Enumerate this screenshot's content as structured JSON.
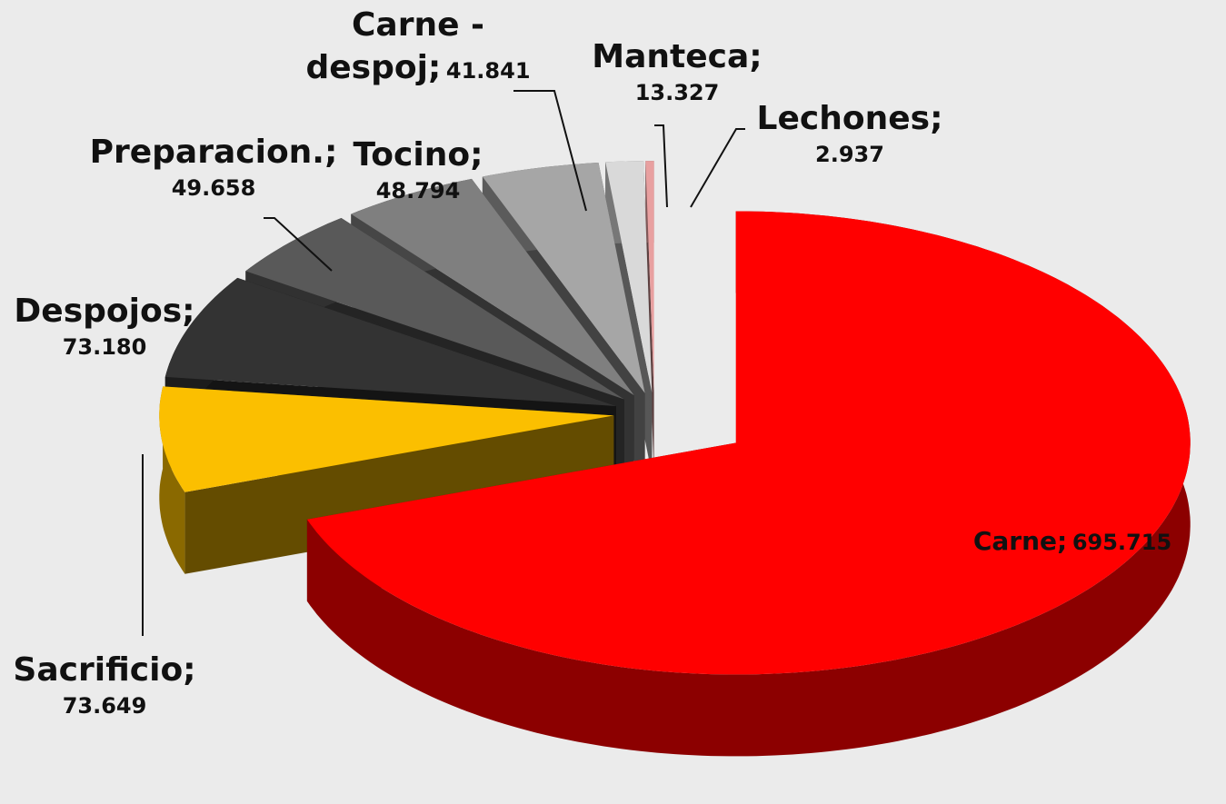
{
  "chart_data": {
    "type": "pie3d",
    "categories": [
      "Carne",
      "Sacrificio",
      "Despojos",
      "Preparacion.",
      "Tocino",
      "Carne - despoj",
      "Manteca",
      "Lechones"
    ],
    "values": [
      695.715,
      73.649,
      73.18,
      49.658,
      48.794,
      41.841,
      13.327,
      2.937
    ],
    "value_labels": [
      "695.715",
      "73.649",
      "73.180",
      "49.658",
      "48.794",
      "41.841",
      "13.327",
      "2.937"
    ],
    "label_separator": ";",
    "colors": [
      "#ff0000",
      "#fbbf00",
      "#333333",
      "#595959",
      "#7f7f7f",
      "#a6a6a6",
      "#d9d9d9",
      "#e8a0a0"
    ]
  }
}
